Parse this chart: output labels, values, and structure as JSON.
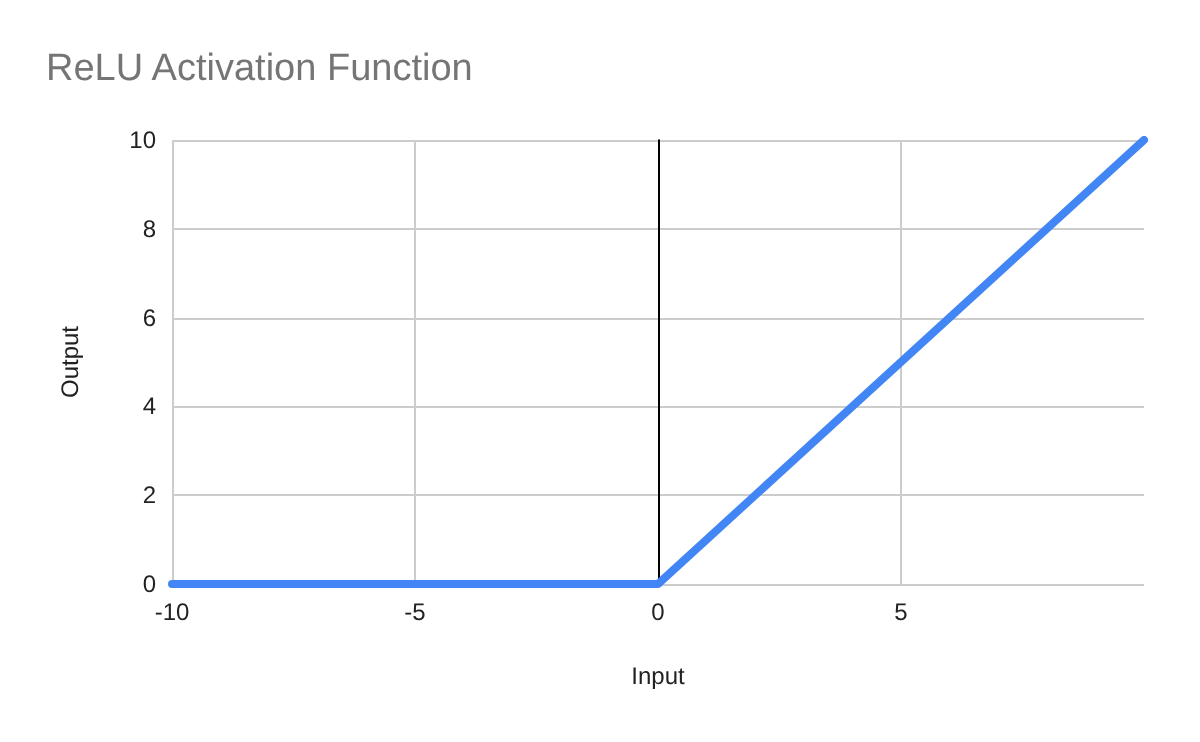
{
  "chart_data": {
    "type": "line",
    "title": "ReLU Activation Function",
    "xlabel": "Input",
    "ylabel": "Output",
    "x": [
      -10,
      0,
      10
    ],
    "series": [
      {
        "color": "#4285f4",
        "values": [
          0,
          0,
          10
        ]
      }
    ],
    "xlim": [
      -10,
      10
    ],
    "xticks": [
      -10,
      -5,
      0,
      5
    ],
    "ylim": [
      0,
      10
    ],
    "yticks": [
      0,
      2,
      4,
      6,
      8,
      10
    ],
    "grid": true,
    "marker": "none",
    "line_style": "solid",
    "ref_lines": [
      {
        "axis": "x",
        "value": 0,
        "color": "#000000"
      }
    ]
  }
}
